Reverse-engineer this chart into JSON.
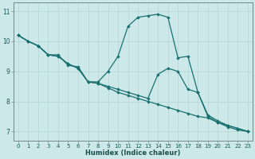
{
  "xlabel": "Humidex (Indice chaleur)",
  "bg_color": "#cce8e8",
  "grid_color_major": "#b8d8d8",
  "grid_color_minor": "#e0f0f0",
  "line_color": "#1a7070",
  "xlim": [
    -0.5,
    23.5
  ],
  "ylim": [
    6.7,
    11.3
  ],
  "yticks": [
    7,
    8,
    9,
    10,
    11
  ],
  "xticks": [
    0,
    1,
    2,
    3,
    4,
    5,
    6,
    7,
    8,
    9,
    10,
    11,
    12,
    13,
    14,
    15,
    16,
    17,
    18,
    19,
    20,
    21,
    22,
    23
  ],
  "series": [
    {
      "x": [
        0,
        1,
        2,
        3,
        4,
        5,
        6,
        7,
        8,
        9,
        10,
        11,
        12,
        13,
        14,
        15,
        16,
        17,
        18,
        19,
        20,
        21,
        22,
        23
      ],
      "y": [
        10.2,
        10.0,
        9.85,
        9.55,
        9.55,
        9.2,
        9.15,
        8.65,
        8.65,
        9.0,
        9.5,
        10.5,
        10.8,
        10.85,
        10.9,
        10.8,
        9.45,
        9.5,
        8.3,
        7.5,
        7.3,
        7.15,
        7.05,
        7.0
      ]
    },
    {
      "x": [
        0,
        1,
        2,
        3,
        4,
        5,
        6,
        7,
        8,
        9,
        10,
        11,
        12,
        13,
        14,
        15,
        16,
        17,
        18,
        19,
        20,
        21,
        22,
        23
      ],
      "y": [
        10.2,
        10.0,
        9.85,
        9.55,
        9.5,
        9.25,
        9.1,
        8.65,
        8.6,
        8.5,
        8.4,
        8.3,
        8.2,
        8.1,
        8.9,
        9.1,
        9.0,
        8.4,
        8.3,
        7.55,
        7.35,
        7.2,
        7.1,
        7.0
      ]
    },
    {
      "x": [
        0,
        1,
        2,
        3,
        4,
        5,
        6,
        7,
        8,
        9,
        10,
        11,
        12,
        13,
        14,
        15,
        16,
        17,
        18,
        19,
        20,
        21,
        22,
        23
      ],
      "y": [
        10.2,
        10.0,
        9.85,
        9.55,
        9.5,
        9.25,
        9.1,
        8.65,
        8.6,
        8.45,
        8.3,
        8.2,
        8.1,
        8.0,
        7.9,
        7.8,
        7.7,
        7.6,
        7.5,
        7.45,
        7.3,
        7.2,
        7.1,
        7.0
      ]
    }
  ]
}
